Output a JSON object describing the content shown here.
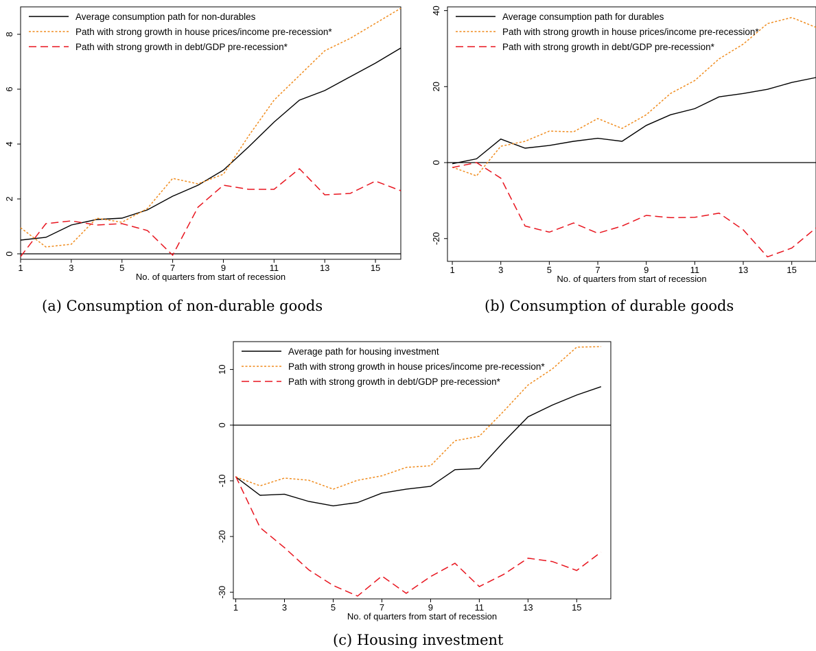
{
  "chart_data": [
    {
      "type": "line",
      "caption": "(a) Consumption of non-durable goods",
      "xlabel": "No. of quarters from start of recession",
      "ylabel": "",
      "xlim": [
        1,
        16
      ],
      "ylim": [
        -0.2,
        9
      ],
      "xticks": [
        1,
        3,
        5,
        7,
        9,
        11,
        13,
        15
      ],
      "yticks": [
        0,
        2,
        4,
        6,
        8
      ],
      "zero_line": true,
      "legend_position": "top-left",
      "x": [
        1,
        2,
        3,
        4,
        5,
        6,
        7,
        8,
        9,
        10,
        11,
        12,
        13,
        14,
        15,
        16
      ],
      "series": [
        {
          "name": "Average consumption path for non-durables",
          "color": "#000000",
          "style": "solid",
          "values": [
            0.5,
            0.6,
            1.05,
            1.25,
            1.3,
            1.6,
            2.1,
            2.5,
            3.05,
            3.9,
            4.8,
            5.6,
            5.95,
            6.45,
            6.95,
            7.5
          ]
        },
        {
          "name": "Path with strong growth in house prices/income pre-recession*",
          "color": "#f08c1e",
          "style": "dotted",
          "values": [
            0.95,
            0.25,
            0.35,
            1.3,
            1.15,
            1.65,
            2.75,
            2.55,
            2.9,
            4.3,
            5.6,
            6.5,
            7.4,
            7.85,
            8.4,
            8.95
          ]
        },
        {
          "name": "Path with strong growth in debt/GDP pre-recession*",
          "color": "#e8141e",
          "style": "dashed",
          "values": [
            -0.1,
            1.1,
            1.2,
            1.05,
            1.1,
            0.85,
            -0.05,
            1.7,
            2.5,
            2.35,
            2.35,
            3.1,
            2.15,
            2.2,
            2.65,
            2.3
          ]
        }
      ]
    },
    {
      "type": "line",
      "caption": "(b) Consumption of durable goods",
      "xlabel": "No. of quarters from start of recession",
      "ylabel": "",
      "xlim": [
        0.8,
        16
      ],
      "ylim": [
        -26,
        41
      ],
      "xticks": [
        1,
        3,
        5,
        7,
        9,
        11,
        13,
        15
      ],
      "yticks": [
        -20,
        0,
        20,
        40
      ],
      "zero_line": true,
      "legend_position": "top-left",
      "x": [
        1,
        2,
        3,
        4,
        5,
        6,
        7,
        8,
        9,
        10,
        11,
        12,
        13,
        14,
        15,
        16
      ],
      "series": [
        {
          "name": "Average consumption path for durables",
          "color": "#000000",
          "style": "solid",
          "values": [
            -0.3,
            1.0,
            6.2,
            3.8,
            4.5,
            5.6,
            6.4,
            5.6,
            9.8,
            12.6,
            14.2,
            17.3,
            18.2,
            19.3,
            21.1,
            22.4
          ]
        },
        {
          "name": "Path with strong growth in house prices/income pre-recession*",
          "color": "#f08c1e",
          "style": "dotted",
          "values": [
            -1.2,
            -3.5,
            4.3,
            5.6,
            8.3,
            8.1,
            11.6,
            9.0,
            12.6,
            18.2,
            21.6,
            27.3,
            31.2,
            36.6,
            38.2,
            35.6
          ]
        },
        {
          "name": "Path with strong growth in debt/GDP pre-recession*",
          "color": "#e8141e",
          "style": "dashed",
          "values": [
            -1.3,
            0.0,
            -4.1,
            -16.7,
            -18.3,
            -15.9,
            -18.6,
            -16.7,
            -13.9,
            -14.5,
            -14.4,
            -13.3,
            -17.7,
            -24.8,
            -22.5,
            -17.2
          ]
        }
      ]
    },
    {
      "type": "line",
      "caption": "(c) Housing investment",
      "xlabel": "No. of quarters from start of recession",
      "ylabel": "",
      "xlim": [
        0.9,
        16.4
      ],
      "ylim": [
        -31.2,
        15
      ],
      "xticks": [
        1,
        3,
        5,
        7,
        9,
        11,
        13,
        15
      ],
      "yticks": [
        -30,
        -20,
        -10,
        0,
        10
      ],
      "zero_line": true,
      "legend_position": "top-left",
      "x": [
        1,
        2,
        3,
        4,
        5,
        6,
        7,
        8,
        9,
        10,
        11,
        12,
        13,
        14,
        15,
        16
      ],
      "series": [
        {
          "name": "Average path for housing investment",
          "color": "#000000",
          "style": "solid",
          "values": [
            -9.3,
            -12.6,
            -12.4,
            -13.7,
            -14.5,
            -13.9,
            -12.2,
            -11.5,
            -11.0,
            -8.0,
            -7.8,
            -3.0,
            1.5,
            3.6,
            5.4,
            6.9
          ]
        },
        {
          "name": "Path with strong growth in house prices/income pre-recession*",
          "color": "#f08c1e",
          "style": "dotted",
          "values": [
            -9.3,
            -10.9,
            -9.5,
            -9.9,
            -11.5,
            -9.9,
            -9.1,
            -7.6,
            -7.3,
            -2.8,
            -2.0,
            2.5,
            7.2,
            10.1,
            14.0,
            14.1
          ]
        },
        {
          "name": "Path with strong growth in debt/GDP pre-recession*",
          "color": "#e8141e",
          "style": "dashed",
          "values": [
            -9.2,
            -18.4,
            -22.0,
            -26.0,
            -28.8,
            -30.7,
            -27.1,
            -30.2,
            -27.2,
            -24.8,
            -29.0,
            -26.8,
            -23.9,
            -24.5,
            -26.1,
            -22.8
          ]
        }
      ]
    }
  ]
}
